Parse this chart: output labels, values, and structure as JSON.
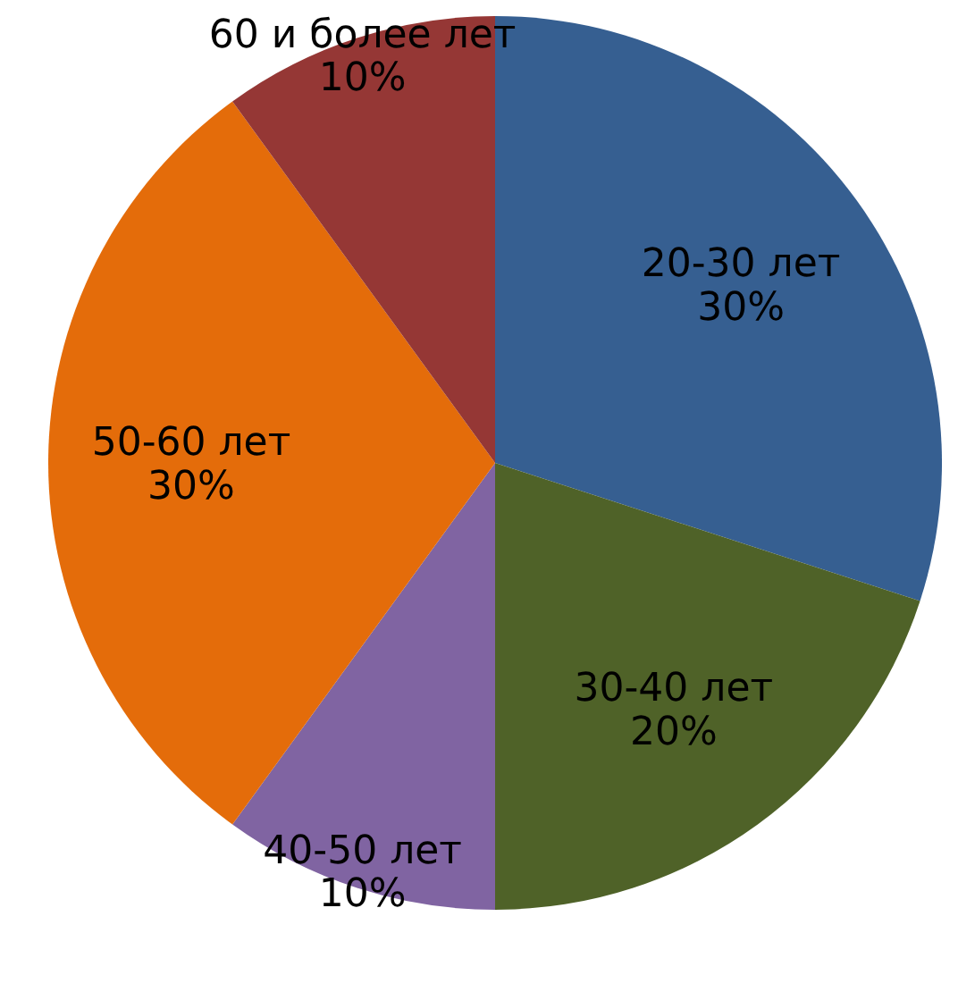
{
  "chart_data": {
    "type": "pie",
    "categories": [
      "20-30 лет",
      "30-40 лет",
      "40-50 лет",
      "50-60 лет",
      "60 и более лет"
    ],
    "values": [
      30,
      20,
      10,
      30,
      10
    ],
    "value_labels": [
      "30%",
      "20%",
      "10%",
      "30%",
      "10%"
    ],
    "colors": [
      "#365f91",
      "#4f6228",
      "#8064a2",
      "#e46c0a",
      "#953735"
    ],
    "legend": false
  }
}
